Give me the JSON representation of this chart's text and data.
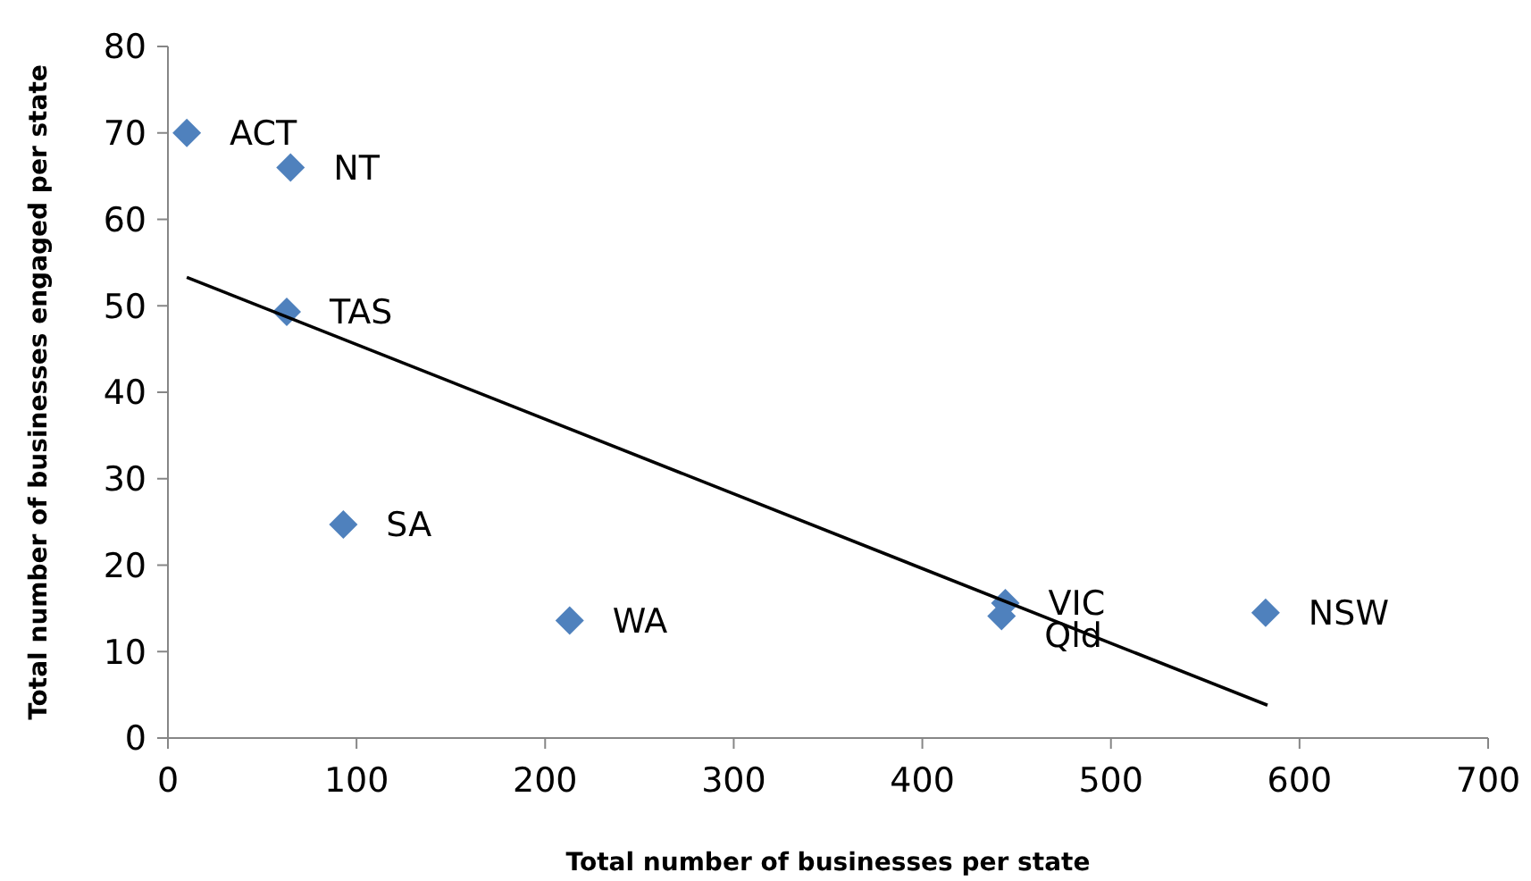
{
  "chart_data": {
    "type": "scatter",
    "xlabel": "Total number of businesses per state",
    "ylabel": "Total number of businesses engaged per state",
    "xlim": [
      0,
      700
    ],
    "xticks": [
      0,
      100,
      200,
      300,
      400,
      500,
      600,
      700
    ],
    "ylim": [
      0,
      80
    ],
    "yticks": [
      0,
      10,
      20,
      30,
      40,
      50,
      60,
      70,
      80
    ],
    "grid": false,
    "series": [
      {
        "marker": "diamond",
        "color": "#4f81bd",
        "x": [
          10,
          65,
          63,
          93,
          213,
          444,
          442,
          582
        ],
        "values": [
          70,
          66,
          49.3,
          24.7,
          13.6,
          15.6,
          14.1,
          14.5
        ]
      },
      {
        "type": "line",
        "marker": "none",
        "color": "#000000",
        "x": [
          10,
          583
        ],
        "values": [
          53.3,
          3.8
        ]
      }
    ],
    "annotations": [
      {
        "text": "ACT",
        "x": 10,
        "y": 70
      },
      {
        "text": "NT",
        "x": 65,
        "y": 66
      },
      {
        "text": "TAS",
        "x": 63,
        "y": 49.3
      },
      {
        "text": "SA",
        "x": 93,
        "y": 24.7
      },
      {
        "text": "WA",
        "x": 213,
        "y": 13.6
      },
      {
        "text": "VIC",
        "x": 444,
        "y": 15.6
      },
      {
        "text": "Qld",
        "x": 442,
        "y": 14.1
      },
      {
        "text": "NSW",
        "x": 582,
        "y": 14.5
      }
    ]
  }
}
